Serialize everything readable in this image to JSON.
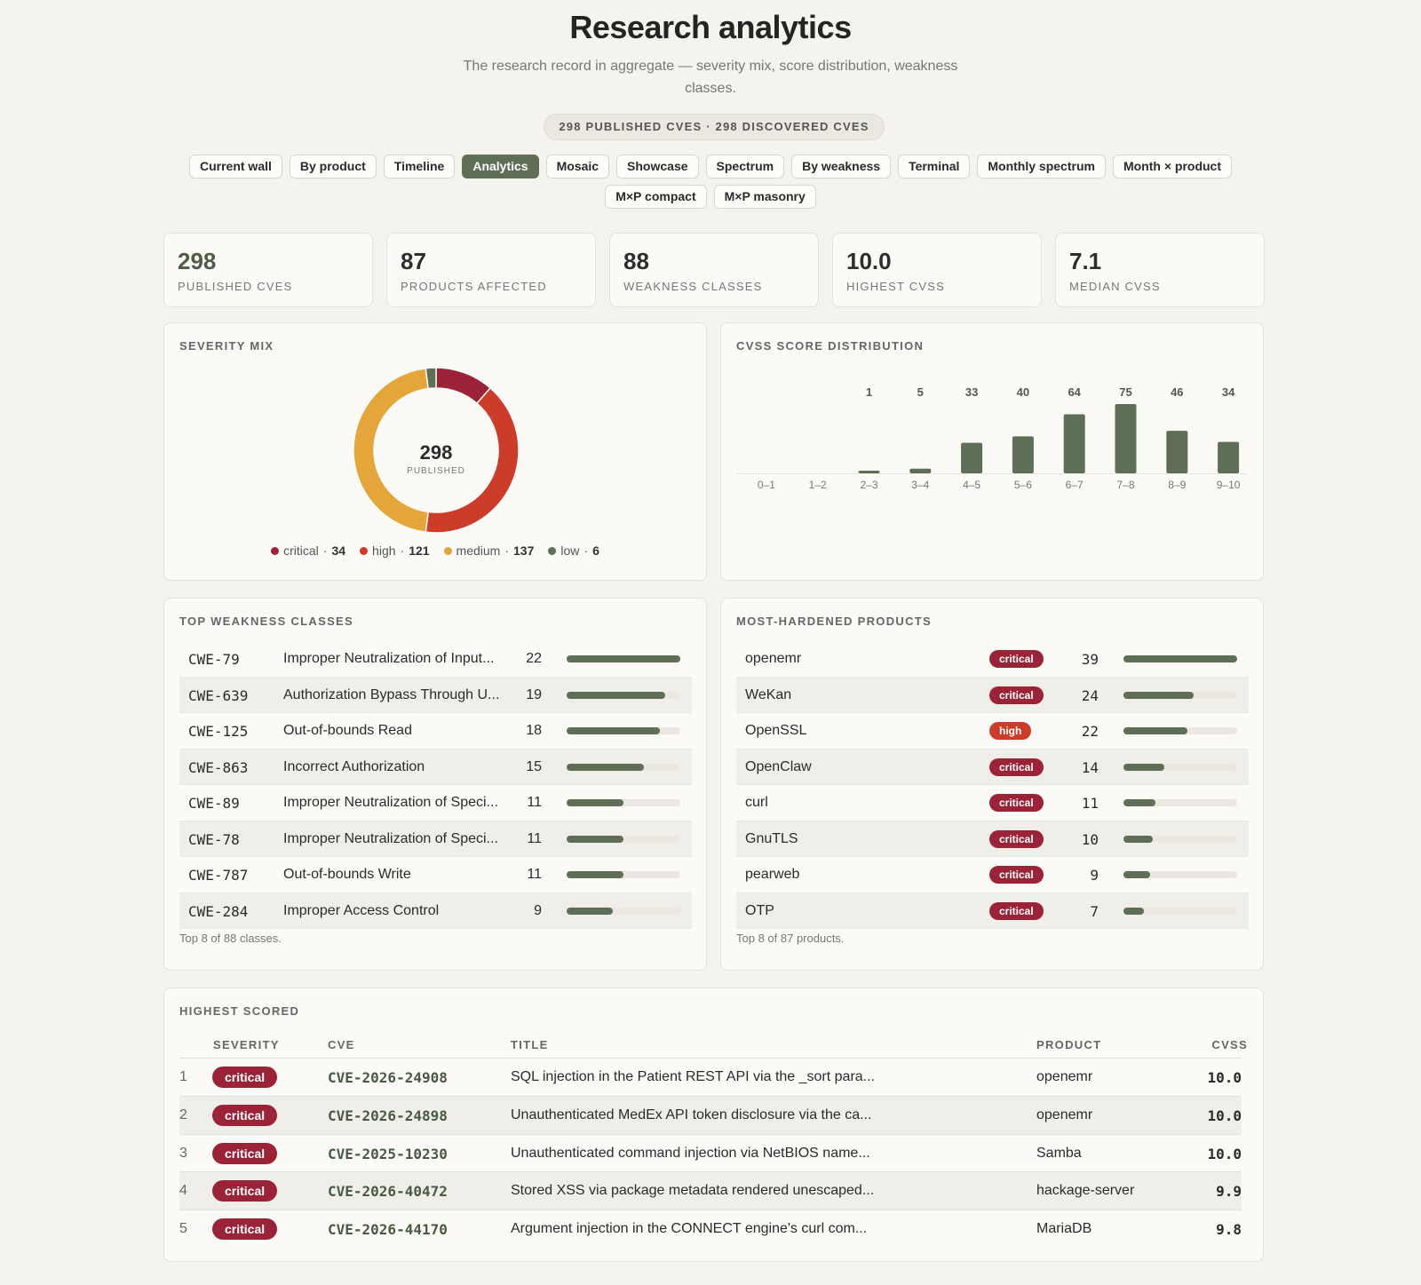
{
  "header": {
    "title": "Research analytics",
    "subtitle": "The research record in aggregate — severity mix, score distribution, weakness classes.",
    "count_pill": "298 PUBLISHED CVES · 298 DISCOVERED CVES"
  },
  "tabs": [
    {
      "label": "Current wall",
      "active": false
    },
    {
      "label": "By product",
      "active": false
    },
    {
      "label": "Timeline",
      "active": false
    },
    {
      "label": "Analytics",
      "active": true
    },
    {
      "label": "Mosaic",
      "active": false
    },
    {
      "label": "Showcase",
      "active": false
    },
    {
      "label": "Spectrum",
      "active": false
    },
    {
      "label": "By weakness",
      "active": false
    },
    {
      "label": "Terminal",
      "active": false
    },
    {
      "label": "Monthly spectrum",
      "active": false
    },
    {
      "label": "Month × product",
      "active": false
    },
    {
      "label": "M×P compact",
      "active": false
    },
    {
      "label": "M×P masonry",
      "active": false
    }
  ],
  "stats": [
    {
      "value": "298",
      "label": "PUBLISHED CVES"
    },
    {
      "value": "87",
      "label": "PRODUCTS AFFECTED"
    },
    {
      "value": "88",
      "label": "WEAKNESS CLASSES"
    },
    {
      "value": "10.0",
      "label": "HIGHEST CVSS"
    },
    {
      "value": "7.1",
      "label": "MEDIAN CVSS"
    }
  ],
  "colors": {
    "critical": "#9a2338",
    "high": "#cc3c2a",
    "medium": "#e4a53a",
    "low": "#5f6e56",
    "accent": "#5f6e56",
    "background": "#f5f3ee"
  },
  "severity_mix": {
    "title": "SEVERITY MIX",
    "center_value": "298",
    "center_label": "PUBLISHED",
    "legend": [
      {
        "key": "critical",
        "label": "critical",
        "count": "34"
      },
      {
        "key": "high",
        "label": "high",
        "count": "121"
      },
      {
        "key": "medium",
        "label": "medium",
        "count": "137"
      },
      {
        "key": "low",
        "label": "low",
        "count": "6"
      }
    ]
  },
  "cvss_distribution": {
    "title": "CVSS SCORE DISTRIBUTION"
  },
  "chart_data": [
    {
      "type": "pie",
      "title": "SEVERITY MIX",
      "categories": [
        "critical",
        "high",
        "medium",
        "low"
      ],
      "values": [
        34,
        121,
        137,
        6
      ]
    },
    {
      "type": "bar",
      "title": "CVSS SCORE DISTRIBUTION",
      "categories": [
        "0–1",
        "1–2",
        "2–3",
        "3–4",
        "4–5",
        "5–6",
        "6–7",
        "7–8",
        "8–9",
        "9–10"
      ],
      "values": [
        0,
        0,
        1,
        5,
        33,
        40,
        64,
        75,
        46,
        34
      ],
      "labels": [
        "",
        "",
        "1",
        "5",
        "33",
        "40",
        "64",
        "75",
        "46",
        "34"
      ],
      "xlabel": "",
      "ylabel": "",
      "ylim": [
        0,
        75
      ]
    }
  ],
  "weakness": {
    "title": "TOP WEAKNESS CLASSES",
    "max": 22,
    "rows": [
      {
        "id": "CWE-79",
        "name": "Improper Neutralization of Input...",
        "count": "22",
        "value": 22
      },
      {
        "id": "CWE-639",
        "name": "Authorization Bypass Through U...",
        "count": "19",
        "value": 19
      },
      {
        "id": "CWE-125",
        "name": "Out-of-bounds Read",
        "count": "18",
        "value": 18
      },
      {
        "id": "CWE-863",
        "name": "Incorrect Authorization",
        "count": "15",
        "value": 15
      },
      {
        "id": "CWE-89",
        "name": "Improper Neutralization of Speci...",
        "count": "11",
        "value": 11
      },
      {
        "id": "CWE-78",
        "name": "Improper Neutralization of Speci...",
        "count": "11",
        "value": 11
      },
      {
        "id": "CWE-787",
        "name": "Out-of-bounds Write",
        "count": "11",
        "value": 11
      },
      {
        "id": "CWE-284",
        "name": "Improper Access Control",
        "count": "9",
        "value": 9
      }
    ],
    "footnote": "Top 8 of 88 classes."
  },
  "products": {
    "title": "MOST-HARDENED PRODUCTS",
    "max": 39,
    "rows": [
      {
        "name": "openemr",
        "severity": "critical",
        "count": "39",
        "value": 39
      },
      {
        "name": "WeKan",
        "severity": "critical",
        "count": "24",
        "value": 24
      },
      {
        "name": "OpenSSL",
        "severity": "high",
        "count": "22",
        "value": 22
      },
      {
        "name": "OpenClaw",
        "severity": "critical",
        "count": "14",
        "value": 14
      },
      {
        "name": "curl",
        "severity": "critical",
        "count": "11",
        "value": 11
      },
      {
        "name": "GnuTLS",
        "severity": "critical",
        "count": "10",
        "value": 10
      },
      {
        "name": "pearweb",
        "severity": "critical",
        "count": "9",
        "value": 9
      },
      {
        "name": "OTP",
        "severity": "critical",
        "count": "7",
        "value": 7
      }
    ],
    "footnote": "Top 8 of 87 products."
  },
  "highest_scored": {
    "title": "HIGHEST SCORED",
    "columns": {
      "severity": "SEVERITY",
      "cve": "CVE",
      "title": "TITLE",
      "product": "PRODUCT",
      "cvss": "CVSS"
    },
    "rows": [
      {
        "rank": "1",
        "severity": "critical",
        "cve": "CVE-2026-24908",
        "title": "SQL injection in the Patient REST API via the _sort para...",
        "product": "openemr",
        "cvss": "10.0"
      },
      {
        "rank": "2",
        "severity": "critical",
        "cve": "CVE-2026-24898",
        "title": "Unauthenticated MedEx API token disclosure via the ca...",
        "product": "openemr",
        "cvss": "10.0"
      },
      {
        "rank": "3",
        "severity": "critical",
        "cve": "CVE-2025-10230",
        "title": "Unauthenticated command injection via NetBIOS name...",
        "product": "Samba",
        "cvss": "10.0"
      },
      {
        "rank": "4",
        "severity": "critical",
        "cve": "CVE-2026-40472",
        "title": "Stored XSS via package metadata rendered unescaped...",
        "product": "hackage-server",
        "cvss": "9.9"
      },
      {
        "rank": "5",
        "severity": "critical",
        "cve": "CVE-2026-44170",
        "title": "Argument injection in the CONNECT engine's curl com...",
        "product": "MariaDB",
        "cvss": "9.8"
      }
    ]
  }
}
